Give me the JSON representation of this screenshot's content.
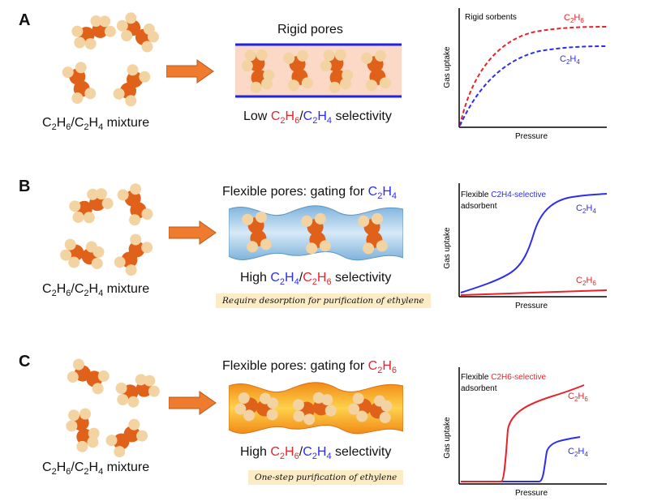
{
  "panels": [
    {
      "letter": "A",
      "mixture_label": "mixture",
      "pore_title": "Rigid pores",
      "selectivity_prefix": "Low",
      "selectivity_suffix": "selectivity",
      "chart_legend": "Rigid sorbents",
      "series_label_red": "C2H6",
      "series_label_blue": "C2H4"
    },
    {
      "letter": "B",
      "mixture_label": "mixture",
      "pore_title": "Flexible pores: gating for",
      "selectivity_prefix": "High",
      "selectivity_suffix": "selectivity",
      "note": "Require desorption for purification of ethylene",
      "chart_legend_prefix": "Flexible",
      "chart_legend_colored": "C2H4-selective",
      "chart_legend_line2": "adsorbent",
      "series_label_blue": "C2H4",
      "series_label_red": "C2H6"
    },
    {
      "letter": "C",
      "mixture_label": "mixture",
      "pore_title": "Flexible pores: gating for",
      "selectivity_prefix": "High",
      "selectivity_suffix": "selectivity",
      "note": "One-step purification of ethylene",
      "chart_legend_prefix": "Flexible",
      "chart_legend_colored": "C2H6-selective",
      "chart_legend_line2": "adsorbent",
      "series_label_red": "C2H6",
      "series_label_blue": "C2H4"
    }
  ],
  "axes": {
    "y_label": "Gas uptake",
    "x_label": "Pressure"
  },
  "colors": {
    "ethane": "#e8232a",
    "ethylene": "#2d2df0",
    "arrow": "#ef7b2f",
    "carbon": "#e0621a",
    "hydrogen": "#f3d3a2"
  }
}
